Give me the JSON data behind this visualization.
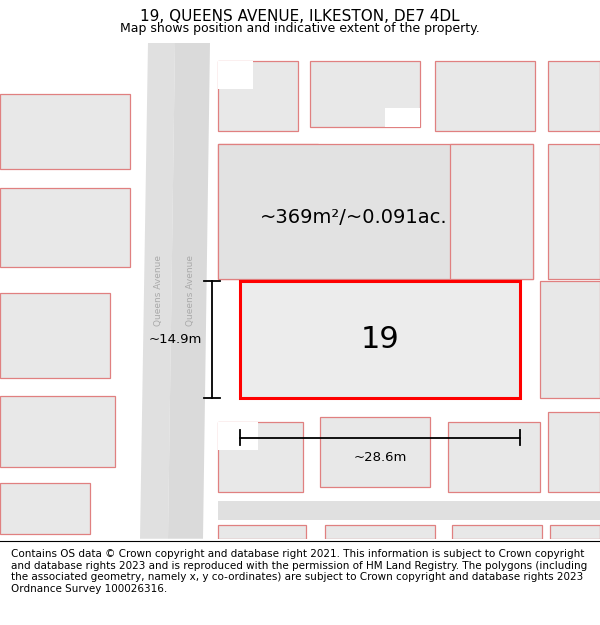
{
  "title": "19, QUEENS AVENUE, ILKESTON, DE7 4DL",
  "subtitle": "Map shows position and indicative extent of the property.",
  "footer": "Contains OS data © Crown copyright and database right 2021. This information is subject to Crown copyright and database rights 2023 and is reproduced with the permission of HM Land Registry. The polygons (including the associated geometry, namely x, y co-ordinates) are subject to Crown copyright and database rights 2023 Ordnance Survey 100026316.",
  "map_bg": "#ffffff",
  "property_label": "19",
  "area_label": "~369m²/~0.091ac.",
  "width_label": "~28.6m",
  "height_label": "~14.9m",
  "highlight_color": "#ff0000",
  "plot_fc": "#e8e8e8",
  "plot_ec": "#e08080",
  "road_fc": "#e0e0e0",
  "title_fontsize": 11,
  "subtitle_fontsize": 9,
  "footer_fontsize": 7.5,
  "label_fontsize": 13,
  "num_fontsize": 20,
  "dim_fontsize": 9
}
